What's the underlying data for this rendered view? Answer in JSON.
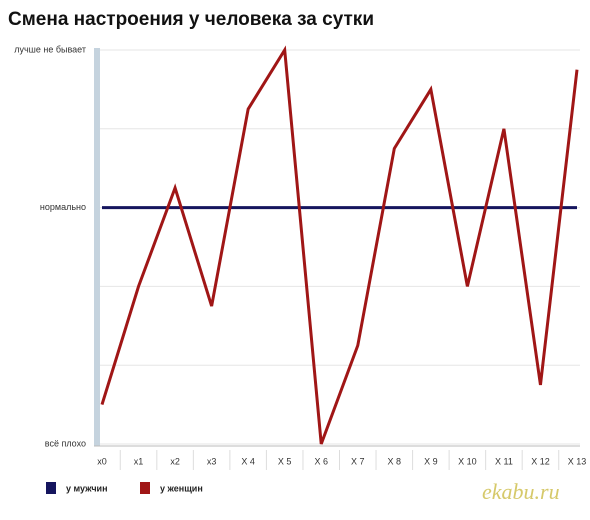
{
  "chart_data": {
    "type": "line",
    "title": "Смена настроения у человека за сутки",
    "categories": [
      "x0",
      "x1",
      "x2",
      "x3",
      "X 4",
      "X 5",
      "X 6",
      "X 7",
      "X 8",
      "X 9",
      "X 10",
      "X 11",
      "X 12",
      "X 13"
    ],
    "series": [
      {
        "name": "у мужчин",
        "color": "#15155e",
        "values": [
          3,
          3,
          3,
          3,
          3,
          3,
          3,
          3,
          3,
          3,
          3,
          3,
          3,
          3
        ]
      },
      {
        "name": "у женщин",
        "color": "#a01616",
        "values": [
          0.5,
          2,
          3.25,
          1.75,
          4.25,
          5,
          0,
          1.25,
          3.75,
          4.5,
          2,
          4,
          0.75,
          4.75
        ]
      }
    ],
    "ylim": [
      0,
      5
    ],
    "yticks": [
      {
        "value": 0,
        "label": "всё плохо"
      },
      {
        "value": 1,
        "label": null
      },
      {
        "value": 2,
        "label": null
      },
      {
        "value": 3,
        "label": "нормально"
      },
      {
        "value": 4,
        "label": null
      },
      {
        "value": 5,
        "label": "лучше не бывает"
      }
    ],
    "grid": true,
    "watermark": "ekabu.ru"
  }
}
